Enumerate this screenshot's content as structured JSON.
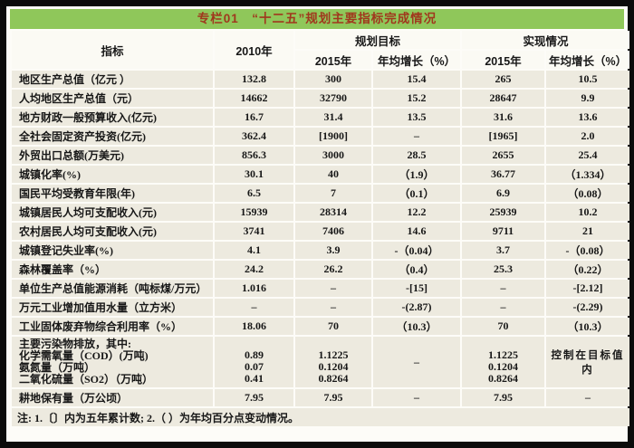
{
  "title": "专栏01　“十二五”规划主要指标完成情况",
  "colors": {
    "frame_border": "#0b0b0b",
    "title_bar_green": "#8fc75a",
    "title_text_red": "#a0371d",
    "row_beige": "#edeadf",
    "header_bg": "#fbfaf4"
  },
  "table": {
    "col_indicator": "指标",
    "col_2010": "2010年",
    "group_plan": "规划目标",
    "group_actual": "实现情况",
    "col_2015": "2015年",
    "col_growth": "年均增长（%）",
    "rows": [
      {
        "label": "地区生产总值（亿元 ）",
        "v2010": "132.8",
        "p2015": "300",
        "pgrow": "15.4",
        "a2015": "265",
        "agrow": "10.5"
      },
      {
        "label": "人均地区生产总值（元）",
        "v2010": "14662",
        "p2015": "32790",
        "pgrow": "15.2",
        "a2015": "28647",
        "agrow": "9.9"
      },
      {
        "label": "地方财政一般预算收入(亿元)",
        "v2010": "16.7",
        "p2015": "31.4",
        "pgrow": "13.5",
        "a2015": "31.6",
        "agrow": "13.6"
      },
      {
        "label": "全社会固定资产投资(亿元)",
        "v2010": "362.4",
        "p2015": "[1900]",
        "pgrow": "–",
        "a2015": "[1965]",
        "agrow": "2.0"
      },
      {
        "label": "外贸出口总额(万美元)",
        "v2010": "856.3",
        "p2015": "3000",
        "pgrow": "28.5",
        "a2015": "2655",
        "agrow": "25.4"
      },
      {
        "label": "城镇化率(%)",
        "v2010": "30.1",
        "p2015": "40",
        "pgrow": "（1.9）",
        "a2015": "36.77",
        "agrow": "（1.334）"
      },
      {
        "label": "国民平均受教育年限(年)",
        "v2010": "6.5",
        "p2015": "7",
        "pgrow": "（0.1）",
        "a2015": "6.9",
        "agrow": "（0.08）"
      },
      {
        "label": "城镇居民人均可支配收入(元)",
        "v2010": "15939",
        "p2015": "28314",
        "pgrow": "12.2",
        "a2015": "25939",
        "agrow": "10.2"
      },
      {
        "label": "农村居民人均可支配收入(元)",
        "v2010": "3741",
        "p2015": "7406",
        "pgrow": "14.6",
        "a2015": "9711",
        "agrow": "21"
      },
      {
        "label": "城镇登记失业率(%)",
        "v2010": "4.1",
        "p2015": "3.9",
        "pgrow": "-（0.04）",
        "a2015": "3.7",
        "agrow": "-（0.08）"
      },
      {
        "label": "森林覆盖率（%）",
        "v2010": "24.2",
        "p2015": "26.2",
        "pgrow": "（0.4）",
        "a2015": "25.3",
        "agrow": "（0.22）"
      },
      {
        "label": "单位生产总值能源消耗（吨标煤/万元）",
        "v2010": "1.016",
        "p2015": "–",
        "pgrow": "-[15]",
        "a2015": "–",
        "agrow": "-[2.12]"
      },
      {
        "label": "万元工业增加值用水量（立方米）",
        "v2010": "–",
        "p2015": "–",
        "pgrow": "-(2.87)",
        "a2015": "–",
        "agrow": "-(2.29)"
      },
      {
        "label": "工业固体废弃物综合利用率（%）",
        "v2010": "18.06",
        "p2015": "70",
        "pgrow": "（10.3）",
        "a2015": "70",
        "agrow": "（10.3）"
      },
      {
        "label": [
          "主要污染物排放，其中:",
          "化学需氧量（COD）(万吨)",
          "氨氮量（万吨）",
          "二氧化硫量（SO2）（万吨）"
        ],
        "v2010": [
          "0.89",
          "0.07",
          "0.41"
        ],
        "p2015": [
          "1.1225",
          "0.1204",
          "0.8264"
        ],
        "pgrow": "–",
        "a2015": [
          "1.1225",
          "0.1204",
          "0.8264"
        ],
        "agrow": "控制在目标值内"
      },
      {
        "label": "耕地保有量（万公顷）",
        "v2010": "7.95",
        "p2015": "7.95",
        "pgrow": "–",
        "a2015": "7.95",
        "agrow": "–"
      }
    ],
    "note": "注: 1.〔〕内为五年累计数; 2.（ ）为年均百分点变动情况。"
  }
}
